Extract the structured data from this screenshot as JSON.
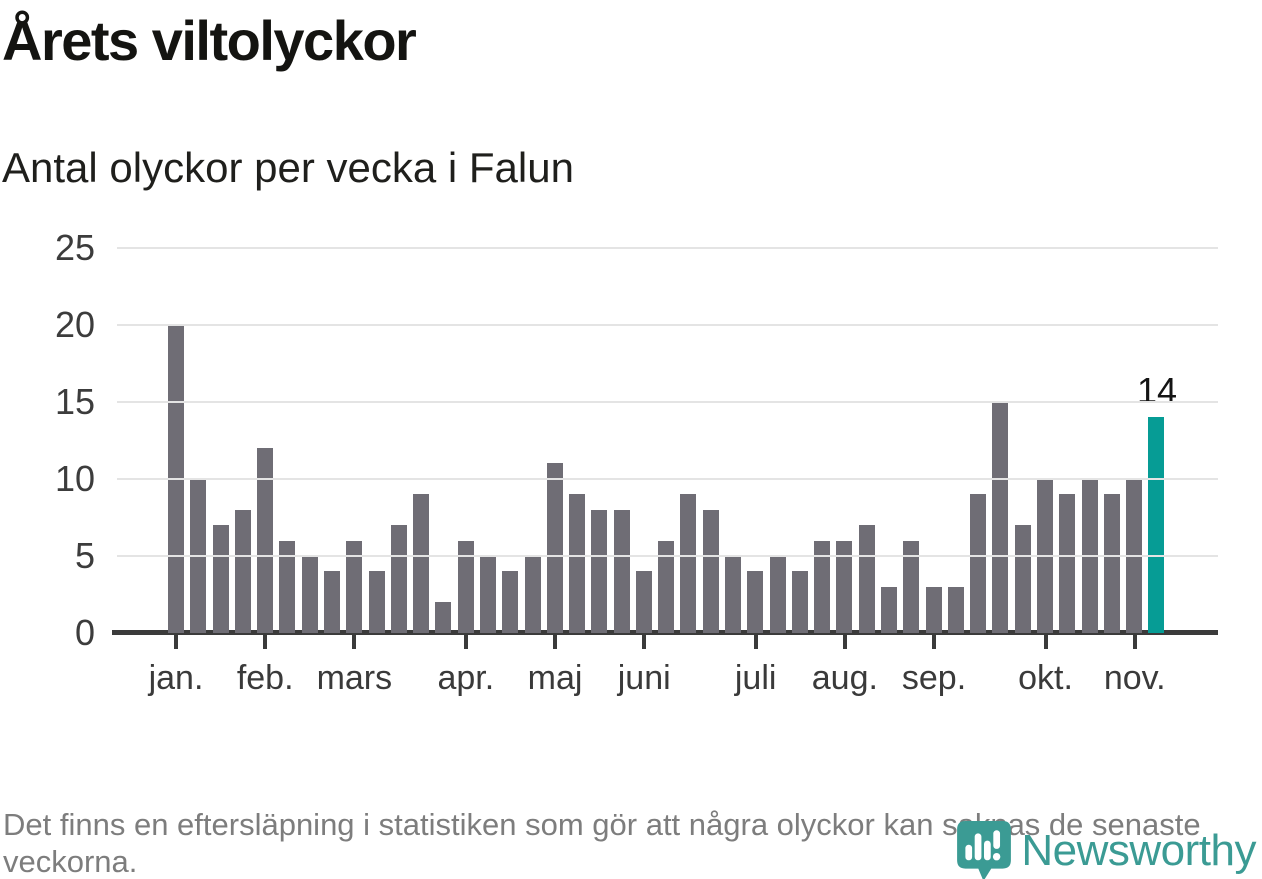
{
  "header": {
    "title": "Årets viltolyckor",
    "subtitle": "Antal olyckor per vecka i Falun"
  },
  "chart_data": {
    "type": "bar",
    "title": "Årets viltolyckor",
    "subtitle": "Antal olyckor per vecka i Falun",
    "ylabel": "Antal olyckor per vecka",
    "xlabel": "",
    "ylim": [
      0,
      25
    ],
    "y_ticks": [
      0,
      5,
      10,
      15,
      20,
      25
    ],
    "grid": "horizontal",
    "values": [
      20,
      10,
      7,
      8,
      12,
      6,
      5,
      4,
      6,
      4,
      7,
      9,
      2,
      6,
      5,
      4,
      5,
      11,
      9,
      8,
      8,
      4,
      6,
      9,
      8,
      5,
      4,
      5,
      4,
      6,
      6,
      7,
      3,
      6,
      3,
      3,
      9,
      15,
      7,
      10,
      9,
      10,
      9,
      10,
      14
    ],
    "bar_color": "#6f6d75",
    "highlight": {
      "index": 44,
      "value": 14,
      "label": "14",
      "color": "#069c95"
    },
    "month_ticks": [
      {
        "label": "jan.",
        "bar_index": 0
      },
      {
        "label": "feb.",
        "bar_index": 4
      },
      {
        "label": "mars",
        "bar_index": 8
      },
      {
        "label": "apr.",
        "bar_index": 13
      },
      {
        "label": "maj",
        "bar_index": 17
      },
      {
        "label": "juni",
        "bar_index": 21
      },
      {
        "label": "juli",
        "bar_index": 26
      },
      {
        "label": "aug.",
        "bar_index": 30
      },
      {
        "label": "sep.",
        "bar_index": 34
      },
      {
        "label": "okt.",
        "bar_index": 39
      },
      {
        "label": "nov.",
        "bar_index": 43
      }
    ],
    "colors": {
      "gridline": "#e4e4e4",
      "axis": "#3b3b3b",
      "tick_label": "#3a3a3a"
    }
  },
  "footer": {
    "note": "Det finns en eftersläpning i statistiken som gör att några olyckor kan saknas de senaste veckorna."
  },
  "logo": {
    "brand": "Newsworthy",
    "color": "#3b9b94"
  }
}
